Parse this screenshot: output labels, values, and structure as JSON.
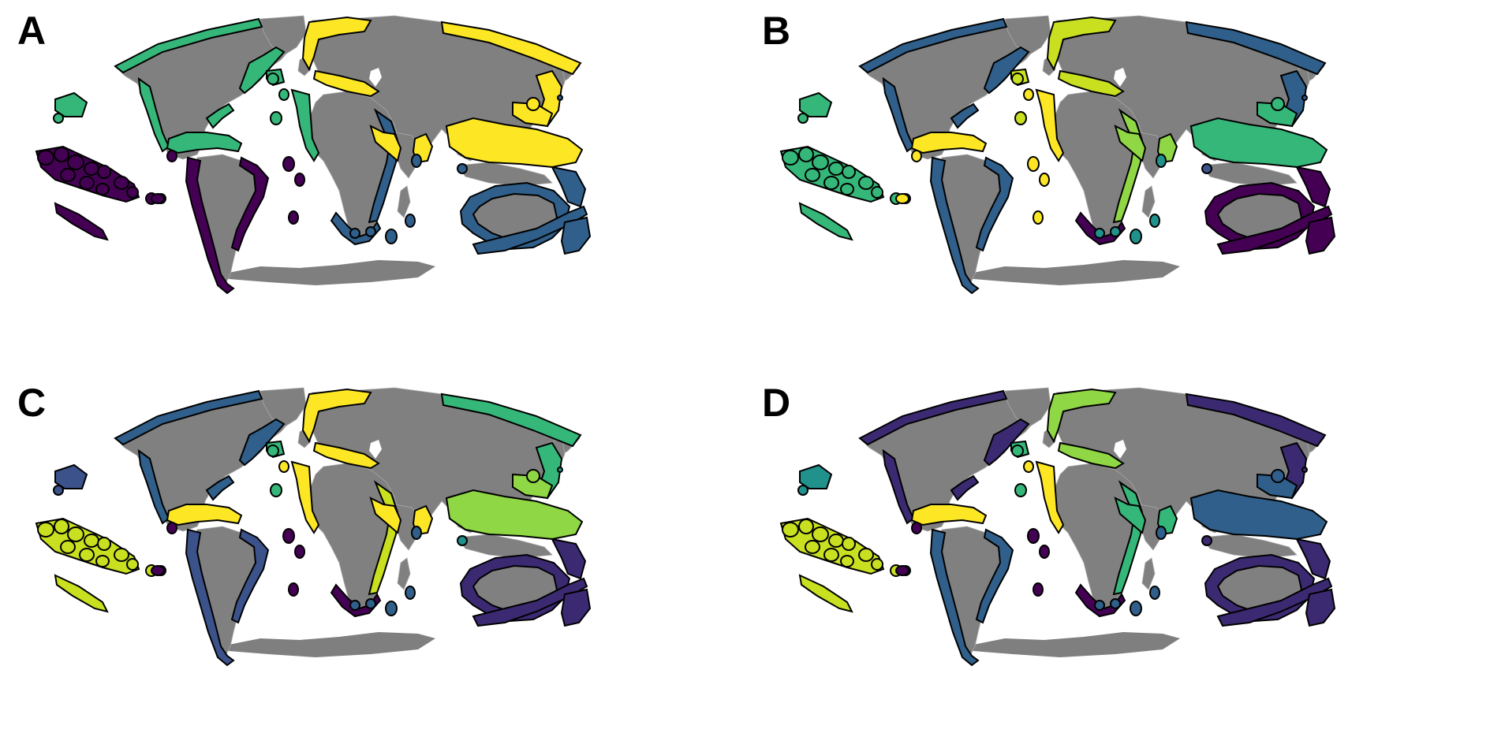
{
  "palette": {
    "dark_purple": "#440154",
    "purple": "#3b2a72",
    "blue": "#2f5f8a",
    "slate_blue": "#3b528b",
    "teal": "#21918c",
    "green": "#35b779",
    "light_green": "#8fd744",
    "lime": "#c8e020",
    "yellow": "#fde725",
    "land": "#808080",
    "outline": "#000000"
  },
  "panels": [
    {
      "label": "A",
      "colors": {
        "north_america": "#35b779",
        "caribbean": "#35b779",
        "pacific_west": "#440154",
        "hawaii": "#35b779",
        "south_america": "#440154",
        "europe": "#fde725",
        "atlantic_islands": "#35b779",
        "west_africa": "#35b779",
        "east_africa": "#2f5f8a",
        "south_africa": "#2f5f8a",
        "asia": "#fde725",
        "south_asia": "#fde725",
        "indo_pacific": "#fde725",
        "australia": "#2f5f8a",
        "australasia": "#2f5f8a",
        "south_islands": "#2f5f8a",
        "mid_atlantic": "#440154",
        "indian_ocean": "#2f5f8a"
      }
    },
    {
      "label": "B",
      "colors": {
        "north_america": "#2f5f8a",
        "caribbean": "#fde725",
        "pacific_west": "#35b779",
        "hawaii": "#35b779",
        "south_america": "#2f5f8a",
        "europe": "#c8e020",
        "atlantic_islands": "#c8e020",
        "west_africa": "#fde725",
        "east_africa": "#8fd744",
        "south_africa": "#440154",
        "asia": "#2f5f8a",
        "south_asia": "#8fd744",
        "indo_pacific": "#35b779",
        "australia": "#440154",
        "australasia": "#440154",
        "south_islands": "#3b528b",
        "mid_atlantic": "#fde725",
        "indian_ocean": "#21918c"
      }
    },
    {
      "label": "C",
      "colors": {
        "north_america": "#2f5f8a",
        "caribbean": "#fde725",
        "pacific_west": "#c8e020",
        "hawaii": "#3b528b",
        "south_america": "#3b528b",
        "europe": "#fde725",
        "atlantic_islands": "#35b779",
        "west_africa": "#fde725",
        "east_africa": "#c8e020",
        "south_africa": "#440154",
        "asia": "#35b779",
        "south_asia": "#fde725",
        "indo_pacific": "#8fd744",
        "australia": "#3b2a72",
        "australasia": "#3b2a72",
        "south_islands": "#21918c",
        "mid_atlantic": "#440154",
        "indian_ocean": "#2f5f8a"
      }
    },
    {
      "label": "D",
      "colors": {
        "north_america": "#3b2a72",
        "caribbean": "#fde725",
        "pacific_west": "#c8e020",
        "hawaii": "#21918c",
        "south_america": "#2f5f8a",
        "europe": "#8fd744",
        "atlantic_islands": "#35b779",
        "west_africa": "#fde725",
        "east_africa": "#35b779",
        "south_africa": "#440154",
        "asia": "#3b2a72",
        "south_asia": "#35b779",
        "indo_pacific": "#2f5f8a",
        "australia": "#3b2a72",
        "australasia": "#3b2a72",
        "south_islands": "#3b2a72",
        "mid_atlantic": "#440154",
        "indian_ocean": "#2f5f8a"
      }
    }
  ]
}
